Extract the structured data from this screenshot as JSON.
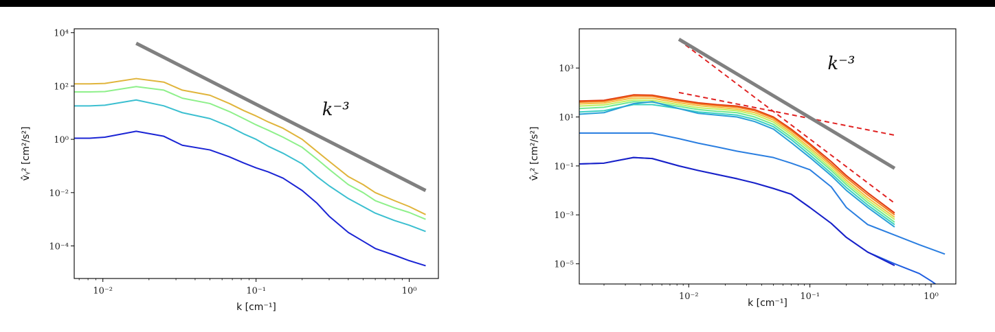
{
  "chart_data": [
    {
      "type": "line",
      "xlabel": "k [cm⁻¹]",
      "ylabel": "v̂ᵧ² [cm²/s²]",
      "xscale": "log",
      "yscale": "log",
      "xlim": [
        0.0065,
        1.55
      ],
      "ylim": [
        6e-06,
        14000
      ],
      "xticks": [
        0.01,
        0.1,
        1
      ],
      "xtick_labels": [
        "10⁻²",
        "10⁻¹",
        "10⁰"
      ],
      "yticks": [
        0.0001,
        0.01,
        1,
        100,
        10000
      ],
      "ytick_labels": [
        "10⁻⁴",
        "10⁻²",
        "10⁰",
        "10²",
        "10⁴"
      ],
      "grid": false,
      "annotation": {
        "text": "k⁻³",
        "x": 0.27,
        "y": 8
      },
      "reference": {
        "color": "#808080",
        "x": [
          0.0165,
          1.28
        ],
        "y": [
          4000,
          0.012
        ]
      },
      "series": [
        {
          "color": "#e0b43a",
          "x": [
            0.0065,
            0.0082,
            0.0103,
            0.0165,
            0.025,
            0.033,
            0.05,
            0.067,
            0.083,
            0.1,
            0.12,
            0.15,
            0.2,
            0.25,
            0.3,
            0.4,
            0.5,
            0.6,
            0.8,
            1.0,
            1.28
          ],
          "y": [
            120,
            120,
            125,
            190,
            140,
            70,
            45,
            22,
            12,
            7.5,
            4.5,
            2.6,
            1.0,
            0.35,
            0.15,
            0.04,
            0.02,
            0.01,
            0.005,
            0.003,
            0.0015
          ]
        },
        {
          "color": "#8ef08a",
          "x": [
            0.0065,
            0.0082,
            0.0103,
            0.0165,
            0.025,
            0.033,
            0.05,
            0.067,
            0.083,
            0.1,
            0.12,
            0.15,
            0.2,
            0.25,
            0.3,
            0.4,
            0.5,
            0.6,
            0.8,
            1.0,
            1.28
          ],
          "y": [
            60,
            60,
            62,
            95,
            70,
            35,
            22,
            11,
            6,
            3.5,
            2.2,
            1.2,
            0.5,
            0.18,
            0.075,
            0.02,
            0.01,
            0.005,
            0.0027,
            0.0018,
            0.001
          ]
        },
        {
          "color": "#3bbfd0",
          "x": [
            0.0065,
            0.0082,
            0.0103,
            0.0165,
            0.025,
            0.033,
            0.05,
            0.067,
            0.083,
            0.1,
            0.12,
            0.15,
            0.2,
            0.25,
            0.3,
            0.4,
            0.5,
            0.6,
            0.8,
            1.0,
            1.28
          ],
          "y": [
            18,
            18,
            19,
            30,
            18,
            10,
            6,
            3,
            1.6,
            1.0,
            0.55,
            0.3,
            0.12,
            0.04,
            0.018,
            0.006,
            0.003,
            0.0017,
            0.0009,
            0.0006,
            0.00035
          ]
        },
        {
          "color": "#1a24d4",
          "x": [
            0.0065,
            0.0082,
            0.0103,
            0.0165,
            0.025,
            0.033,
            0.05,
            0.067,
            0.083,
            0.1,
            0.12,
            0.15,
            0.2,
            0.25,
            0.3,
            0.4,
            0.5,
            0.6,
            0.8,
            1.0,
            1.28
          ],
          "y": [
            1.1,
            1.1,
            1.2,
            2.0,
            1.3,
            0.6,
            0.4,
            0.22,
            0.13,
            0.085,
            0.06,
            0.035,
            0.012,
            0.004,
            0.0013,
            0.00032,
            0.00015,
            8e-05,
            4.5e-05,
            2.8e-05,
            1.8e-05
          ]
        }
      ]
    },
    {
      "type": "line",
      "xlabel": "k [cm⁻¹]",
      "ylabel": "v̂ᵧ² [cm²/s²]",
      "xscale": "log",
      "yscale": "log",
      "xlim": [
        0.00125,
        1.6
      ],
      "ylim": [
        1.5e-06,
        40000
      ],
      "xticks": [
        0.01,
        0.1,
        1
      ],
      "xtick_labels": [
        "10⁻²",
        "10⁻¹",
        "10⁰"
      ],
      "yticks": [
        1e-05,
        0.001,
        0.1,
        10,
        1000
      ],
      "ytick_labels": [
        "10⁻⁵",
        "10⁻³",
        "10⁻¹",
        "10¹",
        "10³"
      ],
      "grid": false,
      "annotation": {
        "text": "k⁻³",
        "x": 0.14,
        "y": 900
      },
      "reference": {
        "color": "#808080",
        "x": [
          0.0083,
          0.5
        ],
        "y": [
          15000,
          0.08
        ]
      },
      "fits": [
        {
          "color": "#e02020",
          "style": "dashed",
          "x": [
            0.0083,
            0.5
          ],
          "y": [
            14000,
            0.003
          ]
        },
        {
          "color": "#e02020",
          "style": "dashed",
          "x": [
            0.0083,
            0.5
          ],
          "y": [
            100,
            1.8
          ]
        }
      ],
      "series": [
        {
          "color": "#e03a10",
          "x": [
            0.00125,
            0.002,
            0.0035,
            0.005,
            0.0083,
            0.012,
            0.017,
            0.025,
            0.035,
            0.05,
            0.07,
            0.1,
            0.15,
            0.2,
            0.3,
            0.5
          ],
          "y": [
            45,
            48,
            80,
            78,
            50,
            38,
            32,
            28,
            20,
            10,
            3.2,
            0.8,
            0.15,
            0.04,
            0.008,
            0.0012
          ]
        },
        {
          "color": "#f27a20",
          "x": [
            0.00125,
            0.002,
            0.0035,
            0.005,
            0.0083,
            0.012,
            0.017,
            0.025,
            0.035,
            0.05,
            0.07,
            0.1,
            0.15,
            0.2,
            0.3,
            0.5
          ],
          "y": [
            40,
            43,
            72,
            70,
            45,
            34,
            29,
            25,
            18,
            9,
            2.8,
            0.7,
            0.12,
            0.033,
            0.0065,
            0.001
          ]
        },
        {
          "color": "#f5c040",
          "x": [
            0.00125,
            0.002,
            0.0035,
            0.005,
            0.0083,
            0.012,
            0.017,
            0.025,
            0.035,
            0.05,
            0.07,
            0.1,
            0.15,
            0.2,
            0.3,
            0.5
          ],
          "y": [
            34,
            37,
            60,
            58,
            38,
            29,
            25,
            21,
            15,
            7.5,
            2.3,
            0.55,
            0.1,
            0.026,
            0.005,
            0.0008
          ]
        },
        {
          "color": "#c0f060",
          "x": [
            0.00125,
            0.002,
            0.0035,
            0.005,
            0.0083,
            0.012,
            0.017,
            0.025,
            0.035,
            0.05,
            0.07,
            0.1,
            0.15,
            0.2,
            0.3,
            0.5
          ],
          "y": [
            28,
            31,
            50,
            48,
            32,
            24,
            21,
            18,
            12.5,
            6.2,
            1.9,
            0.45,
            0.08,
            0.021,
            0.004,
            0.00065
          ]
        },
        {
          "color": "#70e890",
          "x": [
            0.00125,
            0.002,
            0.0035,
            0.005,
            0.0083,
            0.012,
            0.017,
            0.025,
            0.035,
            0.05,
            0.07,
            0.1,
            0.15,
            0.2,
            0.3,
            0.5
          ],
          "y": [
            22,
            25,
            42,
            40,
            27,
            20,
            17,
            15,
            10,
            5,
            1.5,
            0.36,
            0.065,
            0.017,
            0.0032,
            0.0005
          ]
        },
        {
          "color": "#3ad0c0",
          "x": [
            0.00125,
            0.002,
            0.0035,
            0.005,
            0.0083,
            0.012,
            0.017,
            0.025,
            0.035,
            0.05,
            0.07,
            0.1,
            0.15,
            0.2,
            0.3,
            0.5
          ],
          "y": [
            16,
            18,
            32,
            32,
            22,
            16,
            14,
            12,
            8,
            4,
            1.2,
            0.28,
            0.05,
            0.013,
            0.0025,
            0.0004
          ]
        },
        {
          "color": "#2a9fd8",
          "x": [
            0.00125,
            0.002,
            0.0035,
            0.005,
            0.0083,
            0.012,
            0.017,
            0.025,
            0.035,
            0.05,
            0.07,
            0.1,
            0.15,
            0.2,
            0.3,
            0.5
          ],
          "y": [
            13,
            15,
            35,
            42,
            22,
            14,
            12,
            10,
            6.5,
            3.2,
            0.9,
            0.22,
            0.04,
            0.01,
            0.002,
            0.00032
          ]
        },
        {
          "color": "#2a7ee0",
          "x": [
            0.00125,
            0.002,
            0.0035,
            0.005,
            0.0083,
            0.012,
            0.017,
            0.025,
            0.035,
            0.05,
            0.07,
            0.1,
            0.15,
            0.2,
            0.3,
            0.5,
            0.8,
            1.0,
            1.3
          ],
          "y": [
            2.2,
            2.2,
            2.2,
            2.2,
            1.3,
            0.85,
            0.6,
            0.4,
            0.3,
            0.22,
            0.13,
            0.07,
            0.014,
            0.002,
            0.0004,
            0.00015,
            6e-05,
            4e-05,
            2.5e-05
          ]
        },
        {
          "color": "#1e5de0",
          "x": [
            0.00125,
            0.002,
            0.0035,
            0.005,
            0.0083,
            0.012,
            0.017,
            0.025,
            0.035,
            0.05,
            0.07,
            0.1,
            0.15,
            0.2,
            0.3,
            0.5,
            0.8,
            1.0,
            1.3
          ],
          "y": [
            0.12,
            0.13,
            0.22,
            0.2,
            0.1,
            0.065,
            0.045,
            0.03,
            0.02,
            0.012,
            0.007,
            0.002,
            0.00045,
            0.00012,
            3e-05,
            1e-05,
            4e-06,
            2e-06,
            8e-07
          ]
        },
        {
          "color": "#1a20c8",
          "x": [
            0.00125,
            0.002,
            0.0035,
            0.005,
            0.0083,
            0.012,
            0.017,
            0.025,
            0.035,
            0.05,
            0.07,
            0.1,
            0.15,
            0.2,
            0.3,
            0.5
          ],
          "y": [
            0.12,
            0.13,
            0.22,
            0.2,
            0.1,
            0.065,
            0.045,
            0.03,
            0.02,
            0.012,
            0.007,
            0.002,
            0.00045,
            0.00012,
            3e-05,
            8.5e-06
          ]
        }
      ]
    }
  ]
}
